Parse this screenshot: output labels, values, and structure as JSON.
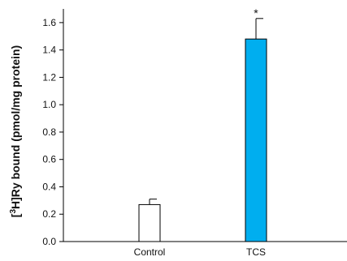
{
  "chart_data": {
    "type": "bar",
    "categories": [
      "Control",
      "TCS"
    ],
    "values": [
      0.27,
      1.48
    ],
    "errors": [
      0.04,
      0.15
    ],
    "annotations": [
      "",
      "*"
    ],
    "bar_colors": [
      "#ffffff",
      "#00aeef"
    ],
    "title": "",
    "xlabel": "",
    "ylabel_parts": [
      "[",
      "3",
      "H]Ry bound (pmol/mg protein)"
    ],
    "ylim": [
      0,
      1.7
    ],
    "yticks": [
      0.0,
      0.2,
      0.4,
      0.6,
      0.8,
      1.0,
      1.2,
      1.4,
      1.6
    ],
    "ytick_labels": [
      "0.0",
      "0.2",
      "0.4",
      "0.6",
      "0.8",
      "1.0",
      "1.2",
      "1.4",
      "1.6"
    ],
    "grid": false,
    "legend": "none"
  }
}
